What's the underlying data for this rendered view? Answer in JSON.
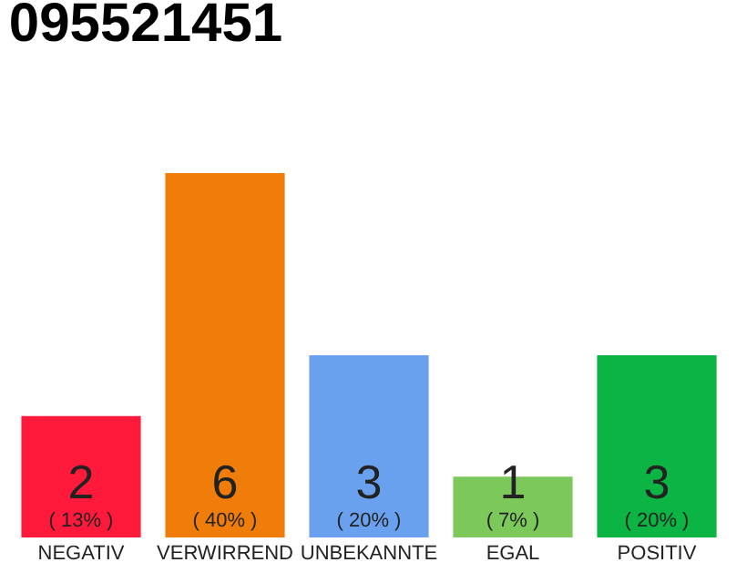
{
  "chart_data": {
    "type": "bar",
    "title": "095521451",
    "categories": [
      "NEGATIV",
      "VERWIRREND",
      "UNBEKANNTE",
      "EGAL",
      "POSITIV"
    ],
    "values": [
      2,
      6,
      3,
      1,
      3
    ],
    "colors": [
      "#ff1a3c",
      "#f07d0a",
      "#6aa1ee",
      "#7cc85a",
      "#0cb443"
    ],
    "value_labels": [
      "2\n( 13% )",
      "6\n( 40% )",
      "3\n( 20% )",
      "1\n( 7% )",
      "3\n( 20% )"
    ]
  }
}
